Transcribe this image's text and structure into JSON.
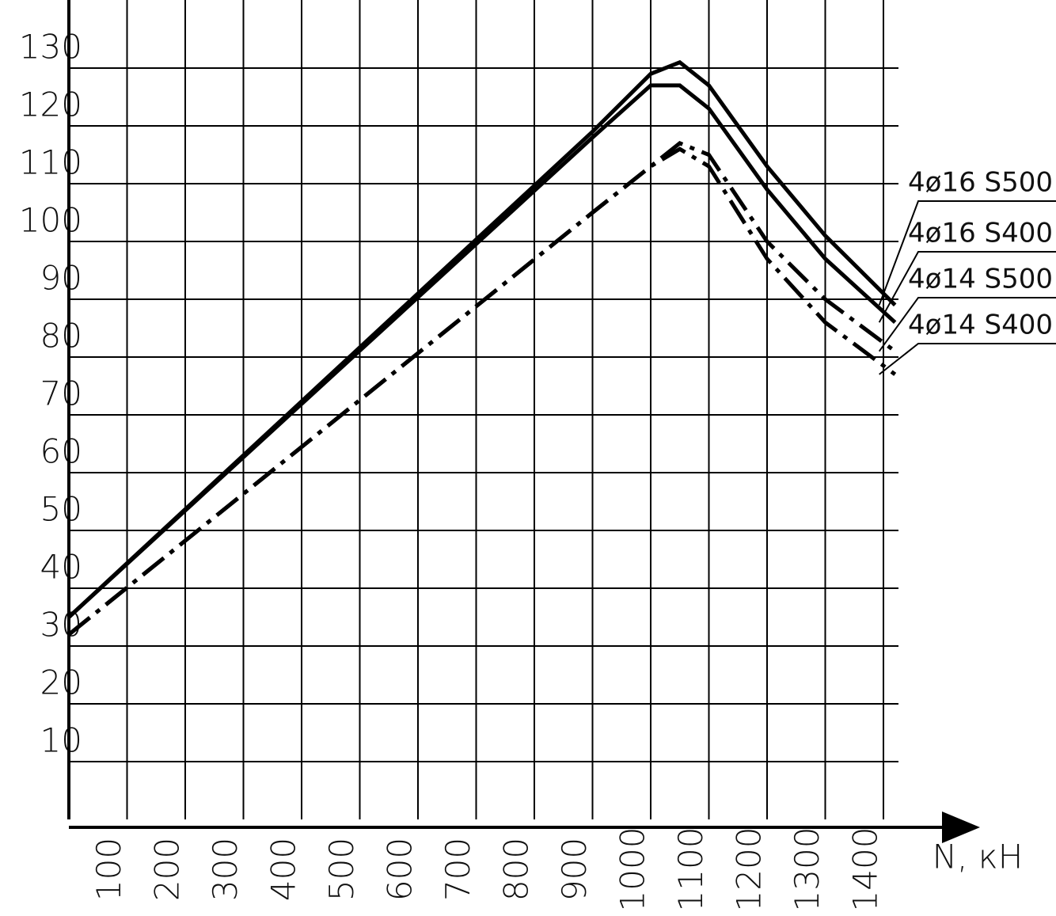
{
  "chart_data": {
    "type": "line",
    "x_label": "N, кН",
    "x": [
      0,
      900,
      1000,
      1050,
      1100,
      1200,
      1300,
      1420
    ],
    "series": [
      {
        "name": "4ø16  S500",
        "color": "#000000",
        "dash": false,
        "values": [
          35,
          119,
          129,
          131,
          127,
          113,
          101,
          89
        ]
      },
      {
        "name": "4ø16  S400",
        "color": "#000000",
        "dash": false,
        "values": [
          35,
          118,
          127,
          127,
          123,
          109,
          97,
          86
        ]
      },
      {
        "name": "4ø14  S500",
        "color": "#000000",
        "dash": true,
        "values": [
          32,
          105,
          113,
          117,
          115,
          100,
          90,
          81
        ]
      },
      {
        "name": "4ø14  S400",
        "color": "#000000",
        "dash": true,
        "values": [
          32,
          105,
          113,
          116,
          113,
          97,
          86,
          77
        ]
      }
    ],
    "xlim": [
      0,
      1500
    ],
    "ylim": [
      0,
      140
    ],
    "xticks": [
      100,
      200,
      300,
      400,
      500,
      600,
      700,
      800,
      900,
      1000,
      1100,
      1200,
      1300,
      1400
    ],
    "yticks": [
      10,
      20,
      30,
      40,
      50,
      60,
      70,
      80,
      90,
      100,
      110,
      120,
      130
    ],
    "grid": true
  }
}
